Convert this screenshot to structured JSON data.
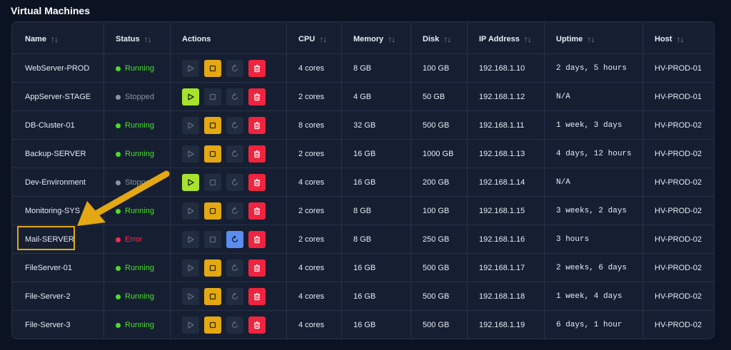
{
  "page": {
    "title": "Virtual Machines"
  },
  "table": {
    "columns": [
      {
        "label": "Name",
        "sortable": true
      },
      {
        "label": "Status",
        "sortable": true
      },
      {
        "label": "Actions",
        "sortable": false
      },
      {
        "label": "CPU",
        "sortable": true
      },
      {
        "label": "Memory",
        "sortable": true
      },
      {
        "label": "Disk",
        "sortable": true
      },
      {
        "label": "IP Address",
        "sortable": true
      },
      {
        "label": "Uptime",
        "sortable": true
      },
      {
        "label": "Host",
        "sortable": true
      }
    ],
    "sort_icon": "sort-arrows-icon",
    "rows": [
      {
        "name": "WebServer-PROD",
        "status": "Running",
        "cpu": "4 cores",
        "memory": "8 GB",
        "disk": "100 GB",
        "ip": "192.168.1.10",
        "uptime": "2 days, 5 hours",
        "host": "HV-PROD-01"
      },
      {
        "name": "AppServer-STAGE",
        "status": "Stopped",
        "cpu": "2 cores",
        "memory": "4 GB",
        "disk": "50 GB",
        "ip": "192.168.1.12",
        "uptime": "N/A",
        "host": "HV-PROD-01"
      },
      {
        "name": "DB-Cluster-01",
        "status": "Running",
        "cpu": "8 cores",
        "memory": "32 GB",
        "disk": "500 GB",
        "ip": "192.168.1.11",
        "uptime": "1 week, 3 days",
        "host": "HV-PROD-02"
      },
      {
        "name": "Backup-SERVER",
        "status": "Running",
        "cpu": "2 cores",
        "memory": "16 GB",
        "disk": "1000 GB",
        "ip": "192.168.1.13",
        "uptime": "4 days, 12 hours",
        "host": "HV-PROD-02"
      },
      {
        "name": "Dev-Environment",
        "status": "Stopped",
        "cpu": "4 cores",
        "memory": "16 GB",
        "disk": "200 GB",
        "ip": "192.168.1.14",
        "uptime": "N/A",
        "host": "HV-PROD-02"
      },
      {
        "name": "Monitoring-SYS",
        "status": "Running",
        "cpu": "2 cores",
        "memory": "8 GB",
        "disk": "100 GB",
        "ip": "192.168.1.15",
        "uptime": "3 weeks, 2 days",
        "host": "HV-PROD-02"
      },
      {
        "name": "Mail-SERVER",
        "status": "Error",
        "cpu": "2 cores",
        "memory": "8 GB",
        "disk": "250 GB",
        "ip": "192.168.1.16",
        "uptime": "3 hours",
        "host": "HV-PROD-02"
      },
      {
        "name": "FileServer-01",
        "status": "Running",
        "cpu": "4 cores",
        "memory": "16 GB",
        "disk": "500 GB",
        "ip": "192.168.1.17",
        "uptime": "2 weeks, 6 days",
        "host": "HV-PROD-02"
      },
      {
        "name": "File-Server-2",
        "status": "Running",
        "cpu": "4 cores",
        "memory": "16 GB",
        "disk": "500 GB",
        "ip": "192.168.1.18",
        "uptime": "1 week, 4 days",
        "host": "HV-PROD-02"
      },
      {
        "name": "File-Server-3",
        "status": "Running",
        "cpu": "4 cores",
        "memory": "16 GB",
        "disk": "500 GB",
        "ip": "192.168.1.19",
        "uptime": "6 days, 1 hour",
        "host": "HV-PROD-02"
      }
    ]
  },
  "actions": {
    "icons": [
      "play-icon",
      "stop-icon",
      "restart-icon",
      "trash-icon"
    ]
  },
  "colors": {
    "status_running": "#4ade2c",
    "status_stopped": "#8a93a5",
    "status_error": "#ff2a4d",
    "btn_play_active": "#a6e22e",
    "btn_stop_active": "#e3a812",
    "btn_restart_active": "#5b8def",
    "btn_delete": "#f0243f",
    "btn_inactive": "#222c40",
    "annotation": "#e3a812"
  }
}
